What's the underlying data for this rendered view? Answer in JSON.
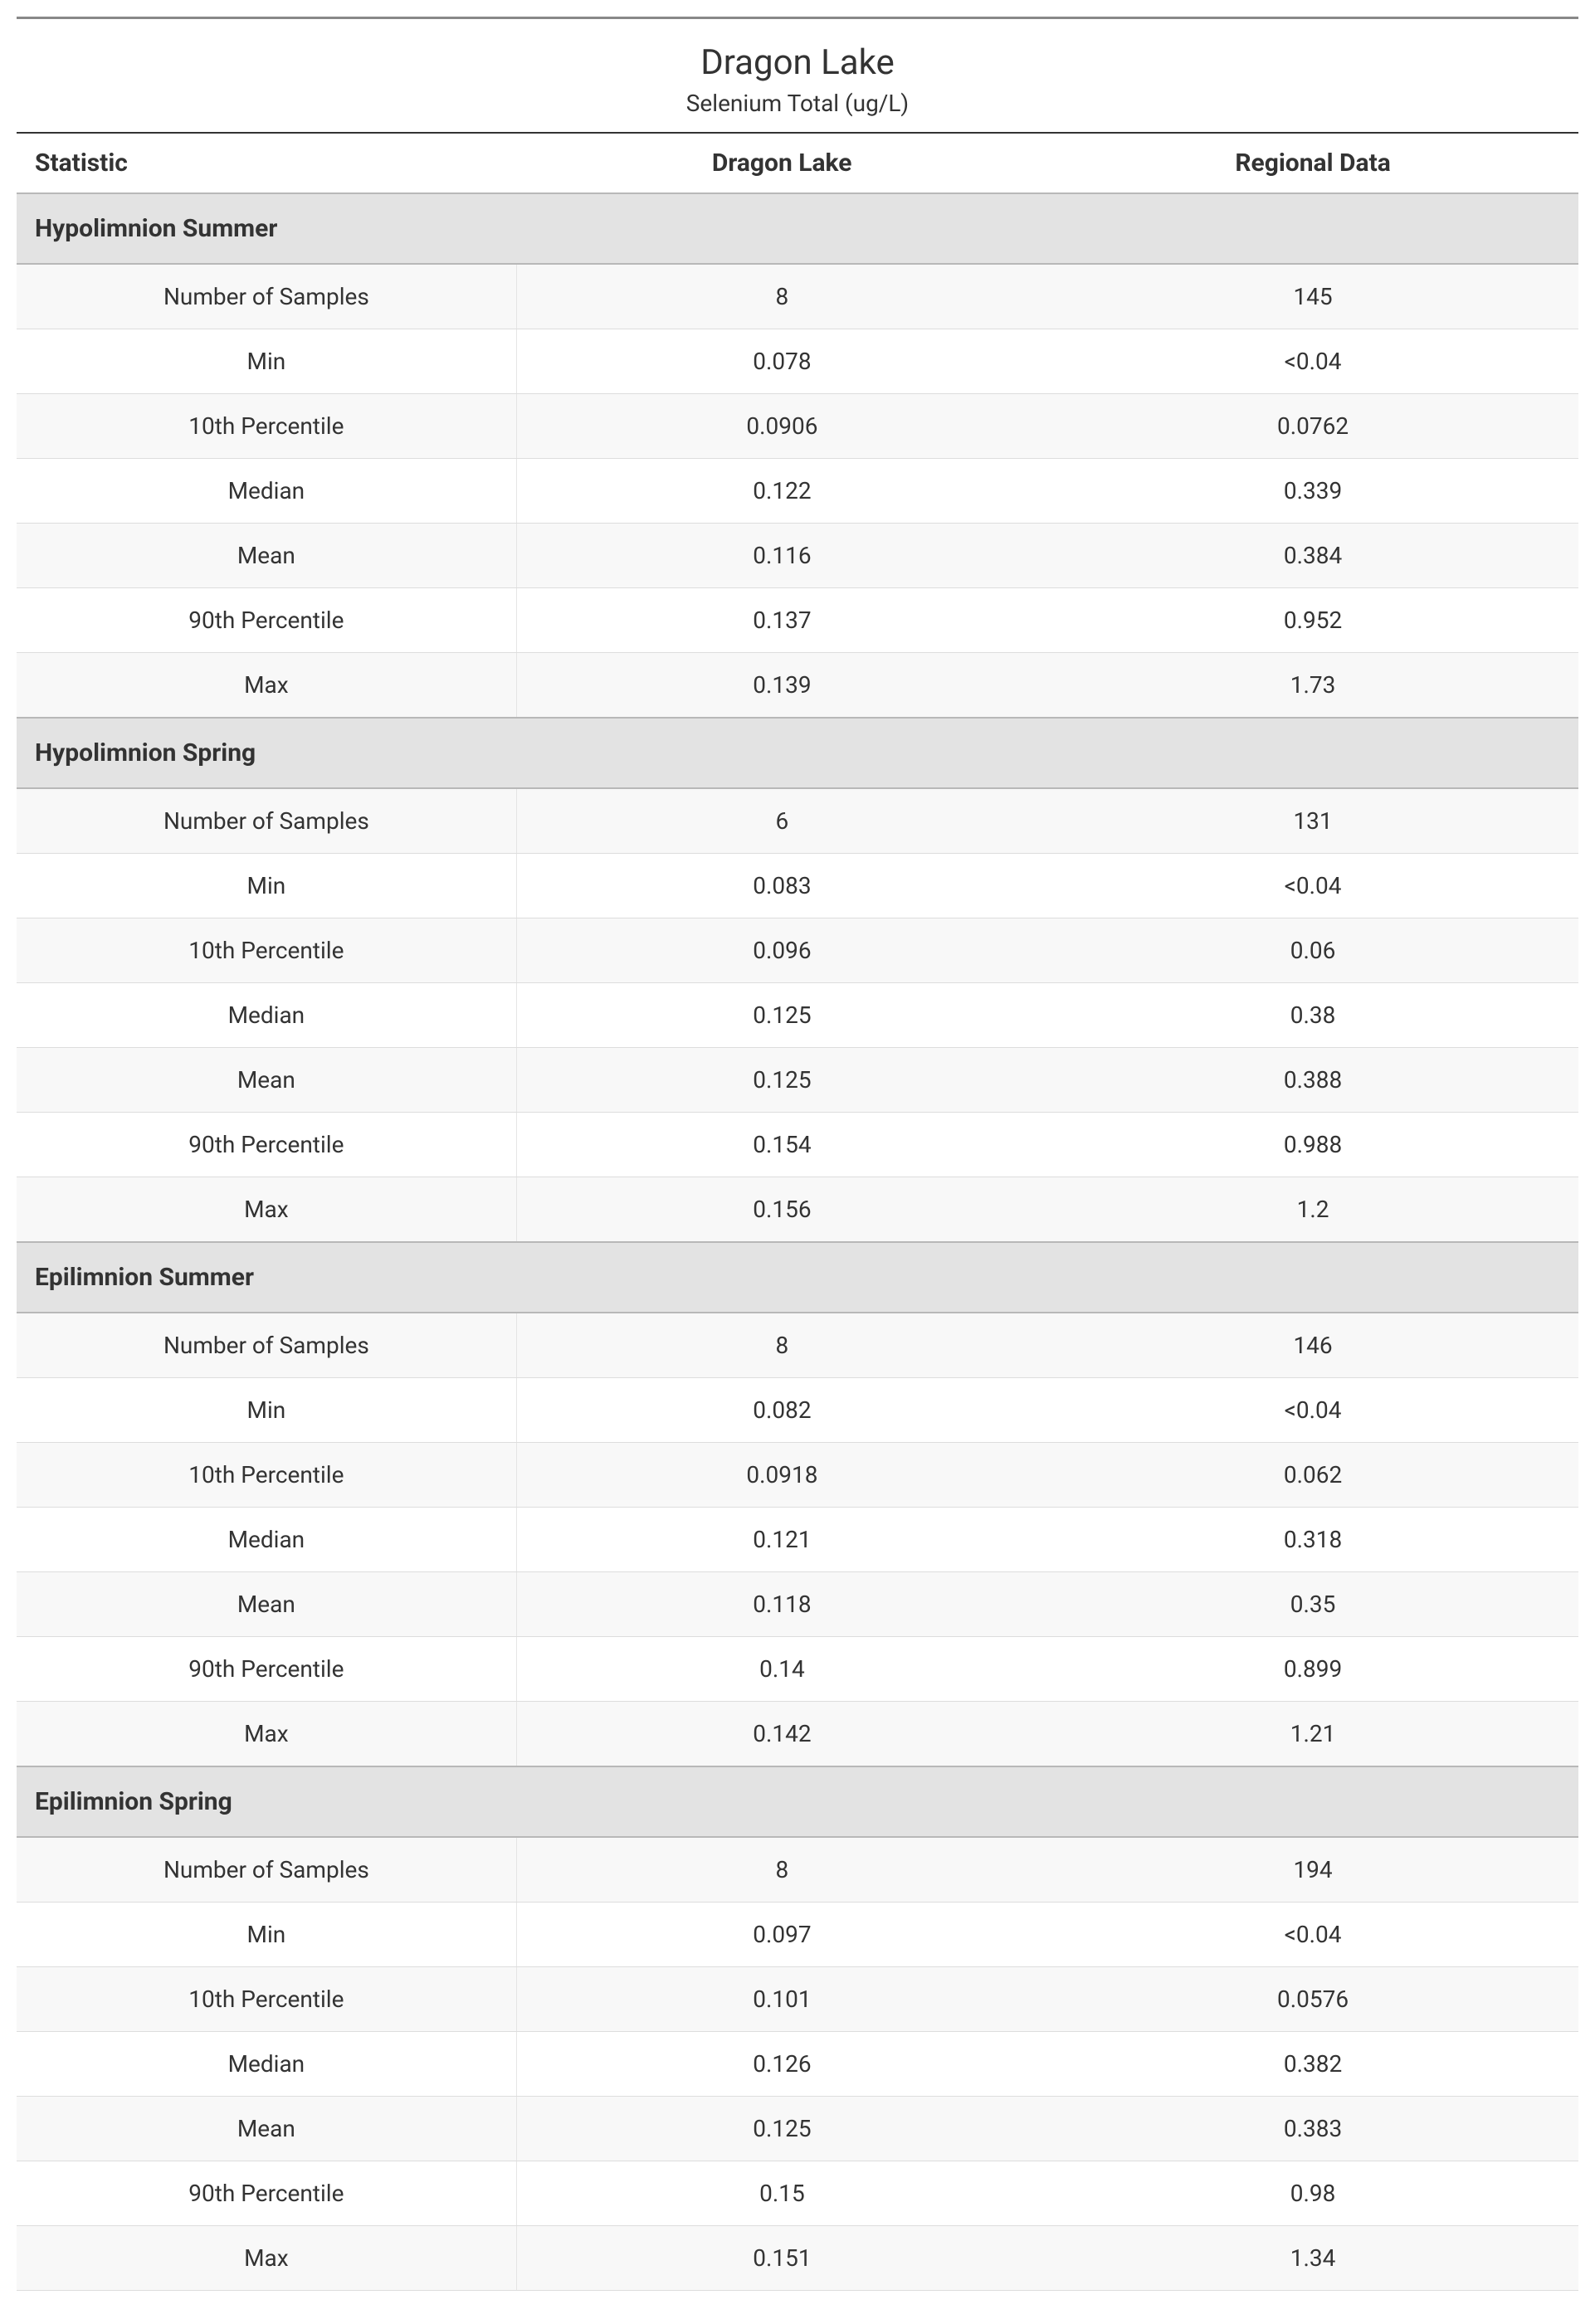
{
  "header": {
    "title": "Dragon Lake",
    "subtitle": "Selenium Total (ug/L)"
  },
  "columns": {
    "stat": "Statistic",
    "local": "Dragon Lake",
    "regional": "Regional Data"
  },
  "stat_labels": {
    "n": "Number of Samples",
    "min": "Min",
    "p10": "10th Percentile",
    "median": "Median",
    "mean": "Mean",
    "p90": "90th Percentile",
    "max": "Max"
  },
  "sections": [
    {
      "name": "Hypolimnion Summer",
      "rows": [
        {
          "stat": "n",
          "local": "8",
          "regional": "145"
        },
        {
          "stat": "min",
          "local": "0.078",
          "regional": "<0.04"
        },
        {
          "stat": "p10",
          "local": "0.0906",
          "regional": "0.0762"
        },
        {
          "stat": "median",
          "local": "0.122",
          "regional": "0.339"
        },
        {
          "stat": "mean",
          "local": "0.116",
          "regional": "0.384"
        },
        {
          "stat": "p90",
          "local": "0.137",
          "regional": "0.952"
        },
        {
          "stat": "max",
          "local": "0.139",
          "regional": "1.73"
        }
      ]
    },
    {
      "name": "Hypolimnion Spring",
      "rows": [
        {
          "stat": "n",
          "local": "6",
          "regional": "131"
        },
        {
          "stat": "min",
          "local": "0.083",
          "regional": "<0.04"
        },
        {
          "stat": "p10",
          "local": "0.096",
          "regional": "0.06"
        },
        {
          "stat": "median",
          "local": "0.125",
          "regional": "0.38"
        },
        {
          "stat": "mean",
          "local": "0.125",
          "regional": "0.388"
        },
        {
          "stat": "p90",
          "local": "0.154",
          "regional": "0.988"
        },
        {
          "stat": "max",
          "local": "0.156",
          "regional": "1.2"
        }
      ]
    },
    {
      "name": "Epilimnion Summer",
      "rows": [
        {
          "stat": "n",
          "local": "8",
          "regional": "146"
        },
        {
          "stat": "min",
          "local": "0.082",
          "regional": "<0.04"
        },
        {
          "stat": "p10",
          "local": "0.0918",
          "regional": "0.062"
        },
        {
          "stat": "median",
          "local": "0.121",
          "regional": "0.318"
        },
        {
          "stat": "mean",
          "local": "0.118",
          "regional": "0.35"
        },
        {
          "stat": "p90",
          "local": "0.14",
          "regional": "0.899"
        },
        {
          "stat": "max",
          "local": "0.142",
          "regional": "1.21"
        }
      ]
    },
    {
      "name": "Epilimnion Spring",
      "rows": [
        {
          "stat": "n",
          "local": "8",
          "regional": "194"
        },
        {
          "stat": "min",
          "local": "0.097",
          "regional": "<0.04"
        },
        {
          "stat": "p10",
          "local": "0.101",
          "regional": "0.0576"
        },
        {
          "stat": "median",
          "local": "0.126",
          "regional": "0.382"
        },
        {
          "stat": "mean",
          "local": "0.125",
          "regional": "0.383"
        },
        {
          "stat": "p90",
          "local": "0.15",
          "regional": "0.98"
        },
        {
          "stat": "max",
          "local": "0.151",
          "regional": "1.34"
        }
      ]
    }
  ],
  "style": {
    "colors": {
      "text": "#333333",
      "section_bg": "#e3e3e3",
      "row_alt_bg": "#f8f8f8",
      "border_light": "#dddddd",
      "border_section": "#b8b8b8",
      "top_rule": "#888888"
    },
    "font_sizes": {
      "title": 42,
      "subtitle": 28,
      "header": 30,
      "section": 30,
      "cell": 28
    }
  }
}
